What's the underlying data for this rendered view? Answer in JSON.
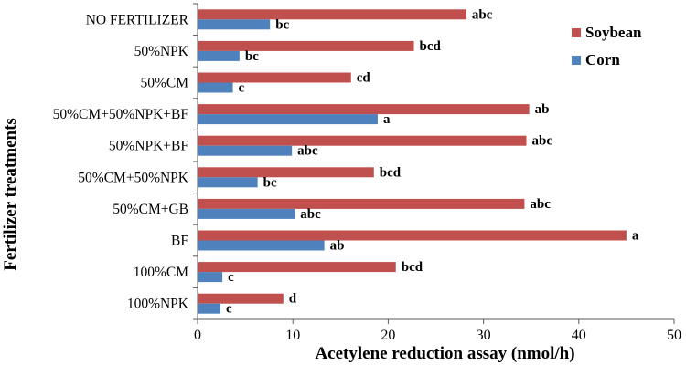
{
  "chart_data": {
    "type": "bar",
    "orientation": "horizontal",
    "title": "",
    "xlabel": "Acetylene reduction assay (nmol/h)",
    "ylabel": "Fertilizer treatments",
    "xlim": [
      0,
      50
    ],
    "xticks": [
      0,
      10,
      20,
      30,
      40,
      50
    ],
    "grid": false,
    "legend_position": "top-right",
    "categories": [
      "NO FERTILIZER",
      "50%NPK",
      "50%CM",
      "50%CM+50%NPK+BF",
      "50%NPK+BF",
      "50%CM+50%NPK",
      "50%CM+GB",
      "BF",
      "100%CM",
      "100%NPK"
    ],
    "series": [
      {
        "name": "Soybean",
        "color": "#C0504D",
        "values": [
          28.2,
          22.7,
          16.1,
          34.8,
          34.5,
          18.5,
          34.3,
          45.0,
          20.8,
          9.0
        ],
        "labels": [
          "abc",
          "bcd",
          "cd",
          "ab",
          "abc",
          "bcd",
          "abc",
          "a",
          "bcd",
          "d"
        ]
      },
      {
        "name": "Corn",
        "color": "#4F81BD",
        "values": [
          7.6,
          4.4,
          3.7,
          18.9,
          9.9,
          6.3,
          10.2,
          13.3,
          2.6,
          2.4
        ],
        "labels": [
          "bc",
          "bc",
          "c",
          "a",
          "abc",
          "bc",
          "abc",
          "ab",
          "c",
          "c"
        ]
      }
    ]
  }
}
